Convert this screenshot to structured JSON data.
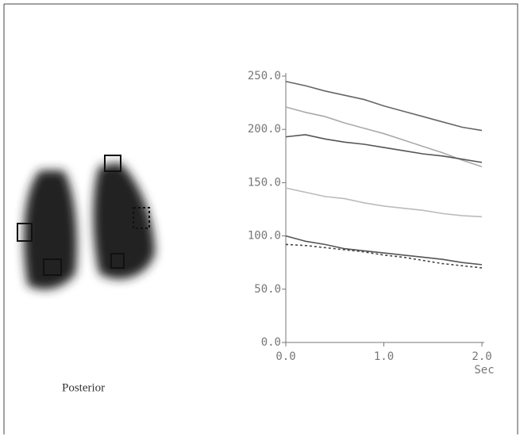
{
  "chart_data": {
    "type": "line",
    "image_caption": "Posterior",
    "xlabel": "Sec",
    "x": [
      0,
      0.2,
      0.4,
      0.6,
      0.8,
      1.0,
      1.2,
      1.4,
      1.6,
      1.8,
      2.0
    ],
    "xlim": [
      0,
      2.0
    ],
    "xticks": [
      {
        "value": 0,
        "label": "0.0"
      },
      {
        "value": 1,
        "label": "1.0"
      },
      {
        "value": 2,
        "label": "2.0"
      }
    ],
    "ylim": [
      0,
      250
    ],
    "yticks": [
      {
        "value": 0,
        "label": "0.0"
      },
      {
        "value": 50,
        "label": "50.0"
      },
      {
        "value": 100,
        "label": "100.0"
      },
      {
        "value": 150,
        "label": "150.0"
      },
      {
        "value": 200,
        "label": "200.0"
      },
      {
        "value": 250,
        "label": "250.0"
      }
    ],
    "series": [
      {
        "color": "#666666",
        "dash": false,
        "values": [
          245,
          241,
          236,
          232,
          228,
          222,
          217,
          212,
          207,
          202,
          199
        ]
      },
      {
        "color": "#aaaaaa",
        "dash": false,
        "values": [
          221,
          216,
          212,
          206,
          201,
          196,
          190,
          184,
          178,
          171,
          165
        ]
      },
      {
        "color": "#555555",
        "dash": false,
        "values": [
          193,
          195,
          191,
          188,
          186,
          183,
          180,
          177,
          175,
          172,
          169
        ]
      },
      {
        "color": "#bbbbbb",
        "dash": false,
        "values": [
          145,
          141,
          137,
          135,
          131,
          128,
          126,
          124,
          121,
          119,
          118
        ]
      },
      {
        "color": "#555555",
        "dash": false,
        "values": [
          100,
          95,
          92,
          88,
          86,
          84,
          82,
          80,
          78,
          75,
          73
        ]
      },
      {
        "color": "#444444",
        "dash": true,
        "values": [
          92,
          91,
          89,
          87,
          85,
          82,
          80,
          77,
          74,
          72,
          70
        ]
      }
    ]
  }
}
